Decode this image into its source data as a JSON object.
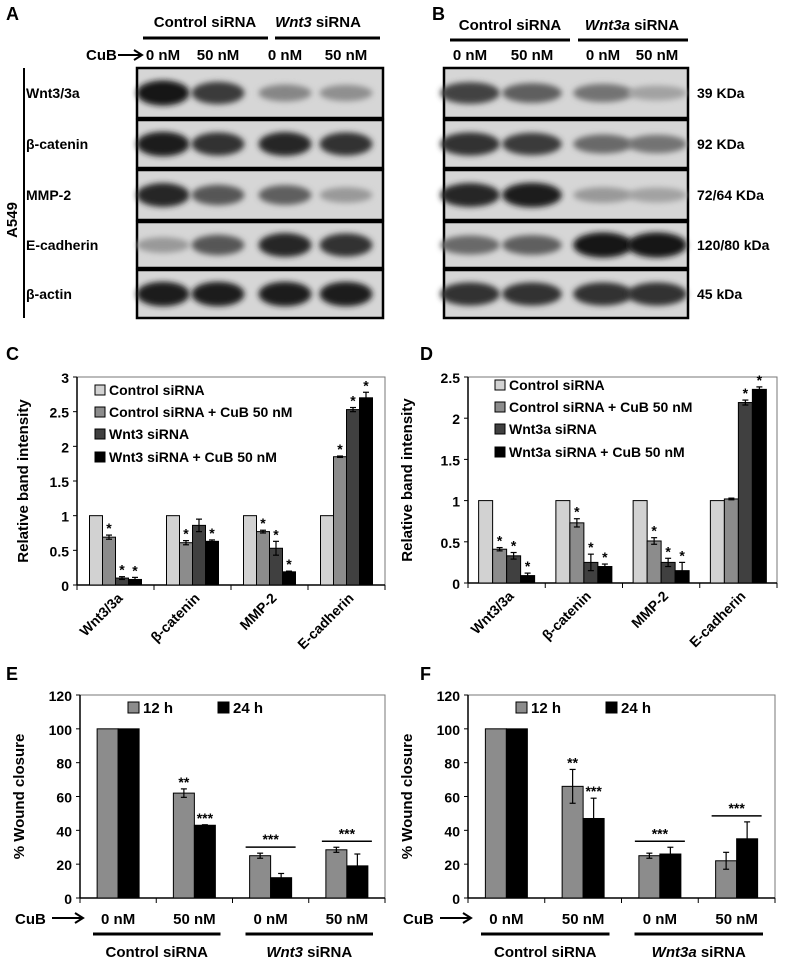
{
  "blot_a": {
    "panel": "A",
    "groups": [
      {
        "label": "Control siRNA"
      },
      {
        "label_italic": "Wnt3",
        "label_rest": " siRNA"
      }
    ],
    "treatment_label": "CuB",
    "lanes": [
      "0 nM",
      "50 nM",
      "0 nM",
      "50 nM"
    ],
    "cell_line": "A549",
    "rows": [
      {
        "label": "Wnt3/3a",
        "band_levels": [
          0.95,
          0.75,
          0.35,
          0.3
        ]
      },
      {
        "label": "β-catenin",
        "band_levels": [
          0.9,
          0.8,
          0.85,
          0.8
        ]
      },
      {
        "label": "MMP-2",
        "band_levels": [
          0.85,
          0.6,
          0.55,
          0.25
        ]
      },
      {
        "label": "E-cadherin",
        "band_levels": [
          0.25,
          0.6,
          0.85,
          0.8
        ]
      },
      {
        "label": "β-actin",
        "band_levels": [
          0.9,
          0.9,
          0.9,
          0.9
        ]
      }
    ]
  },
  "blot_b": {
    "panel": "B",
    "groups": [
      {
        "label": "Control siRNA"
      },
      {
        "label_italic": "Wnt3a",
        "label_rest": " siRNA"
      }
    ],
    "lanes": [
      "0 nM",
      "50 nM",
      "0 nM",
      "50 nM"
    ],
    "rows": [
      {
        "size": "39 KDa",
        "band_levels": [
          0.7,
          0.55,
          0.45,
          0.2
        ]
      },
      {
        "size": "92 KDa",
        "band_levels": [
          0.8,
          0.75,
          0.5,
          0.45
        ]
      },
      {
        "size": "72/64 KDa",
        "band_levels": [
          0.85,
          0.9,
          0.25,
          0.2
        ]
      },
      {
        "size": "120/80 kDa",
        "band_levels": [
          0.5,
          0.55,
          0.95,
          0.95
        ]
      },
      {
        "size": "45 kDa",
        "band_levels": [
          0.8,
          0.8,
          0.8,
          0.8
        ]
      }
    ]
  },
  "chart_data": [
    {
      "panel": "C",
      "type": "bar",
      "ylabel": "Relative band intensity",
      "ylim": [
        0,
        3
      ],
      "yticks": [
        "0",
        "0.5",
        "1",
        "1.5",
        "2",
        "2.5",
        "3"
      ],
      "categories": [
        "Wnt3/3a",
        "β-catenin",
        "MMP-2",
        "E-cadherin"
      ],
      "legend_placement": "top-left",
      "colors": [
        "#d2d2d2",
        "#8c8c8c",
        "#404040",
        "#000000"
      ],
      "series": [
        {
          "name": "Control siRNA",
          "values": [
            1,
            1,
            1,
            1
          ],
          "errors": [
            0,
            0,
            0,
            0
          ],
          "sig": [
            "",
            "",
            "",
            ""
          ]
        },
        {
          "name": "Control siRNA + CuB 50 nM",
          "values": [
            0.69,
            0.61,
            0.77,
            1.85
          ],
          "errors": [
            0.03,
            0.03,
            0.02,
            0.01
          ],
          "sig": [
            "*",
            "*",
            "*",
            "*"
          ]
        },
        {
          "name": "Wnt3 siRNA",
          "values": [
            0.1,
            0.86,
            0.53,
            2.53
          ],
          "errors": [
            0.02,
            0.09,
            0.1,
            0.03
          ],
          "sig": [
            "*",
            "",
            "*",
            "*"
          ]
        },
        {
          "name": "Wnt3 siRNA + CuB 50 nM",
          "values": [
            0.08,
            0.63,
            0.19,
            2.7
          ],
          "errors": [
            0.03,
            0.02,
            0.01,
            0.08
          ],
          "sig": [
            "*",
            "*",
            "*",
            "*"
          ]
        }
      ]
    },
    {
      "panel": "D",
      "type": "bar",
      "ylabel": "Relative band intensity",
      "ylim": [
        0,
        2.5
      ],
      "yticks": [
        "0",
        "0.5",
        "1",
        "1.5",
        "2",
        "2.5"
      ],
      "categories": [
        "Wnt3/3a",
        "β-catenin",
        "MMP-2",
        "E-cadherin"
      ],
      "legend_placement": "top-left",
      "colors": [
        "#d2d2d2",
        "#8c8c8c",
        "#404040",
        "#000000"
      ],
      "series": [
        {
          "name": "Control siRNA",
          "values": [
            1,
            1,
            1,
            1
          ],
          "errors": [
            0,
            0,
            0,
            0
          ],
          "sig": [
            "",
            "",
            "",
            ""
          ]
        },
        {
          "name": "Control siRNA + CuB 50 nM",
          "values": [
            0.41,
            0.73,
            0.51,
            1.02
          ],
          "errors": [
            0.02,
            0.05,
            0.04,
            0.01
          ],
          "sig": [
            "*",
            "*",
            "*",
            ""
          ]
        },
        {
          "name": "Wnt3a siRNA",
          "values": [
            0.33,
            0.25,
            0.25,
            2.19
          ],
          "errors": [
            0.04,
            0.1,
            0.05,
            0.03
          ],
          "sig": [
            "*",
            "*",
            "*",
            "*"
          ]
        },
        {
          "name": "Wnt3a siRNA + CuB 50 nM",
          "values": [
            0.09,
            0.2,
            0.15,
            2.35
          ],
          "errors": [
            0.03,
            0.03,
            0.1,
            0.03
          ],
          "sig": [
            "*",
            "*",
            "*",
            "*"
          ]
        }
      ]
    },
    {
      "panel": "E",
      "type": "bar",
      "ylabel": "% Wound closure",
      "ylim": [
        0,
        120
      ],
      "yticks": [
        "0",
        "20",
        "40",
        "60",
        "80",
        "100",
        "120"
      ],
      "treatment_label": "CuB",
      "categories": [
        "0 nM",
        "50 nM",
        "0 nM",
        "50 nM"
      ],
      "groups": [
        {
          "label": "Control siRNA"
        },
        {
          "label_italic": "Wnt3",
          "label_rest": " siRNA"
        }
      ],
      "legend_placement": "top",
      "colors": [
        "#8c8c8c",
        "#000000"
      ],
      "series": [
        {
          "name": "12 h",
          "values": [
            100,
            62,
            25,
            28.5
          ],
          "errors": [
            0,
            2.5,
            1.5,
            1.5
          ],
          "sig": [
            "",
            "**",
            "",
            ""
          ]
        },
        {
          "name": "24 h",
          "values": [
            100,
            43,
            12,
            19
          ],
          "errors": [
            0,
            0.3,
            2.5,
            7
          ],
          "sig": [
            "",
            "***",
            "",
            ""
          ]
        }
      ],
      "bracket_sig": [
        "",
        "",
        "***",
        "***"
      ]
    },
    {
      "panel": "F",
      "type": "bar",
      "ylabel": "% Wound closure",
      "ylim": [
        0,
        120
      ],
      "yticks": [
        "0",
        "20",
        "40",
        "60",
        "80",
        "100",
        "120"
      ],
      "treatment_label": "CuB",
      "categories": [
        "0 nM",
        "50 nM",
        "0 nM",
        "50 nM"
      ],
      "groups": [
        {
          "label": "Control siRNA"
        },
        {
          "label_italic": "Wnt3a",
          "label_rest": " siRNA"
        }
      ],
      "legend_placement": "top",
      "colors": [
        "#8c8c8c",
        "#000000"
      ],
      "series": [
        {
          "name": "12 h",
          "values": [
            100,
            66,
            25,
            22
          ],
          "errors": [
            0,
            10,
            1.5,
            5
          ],
          "sig": [
            "",
            "**",
            "",
            ""
          ]
        },
        {
          "name": "24 h",
          "values": [
            100,
            47,
            26,
            35
          ],
          "errors": [
            0,
            12,
            4,
            10
          ],
          "sig": [
            "",
            "***",
            "",
            ""
          ]
        }
      ],
      "bracket_sig": [
        "",
        "",
        "***",
        "***"
      ]
    }
  ]
}
